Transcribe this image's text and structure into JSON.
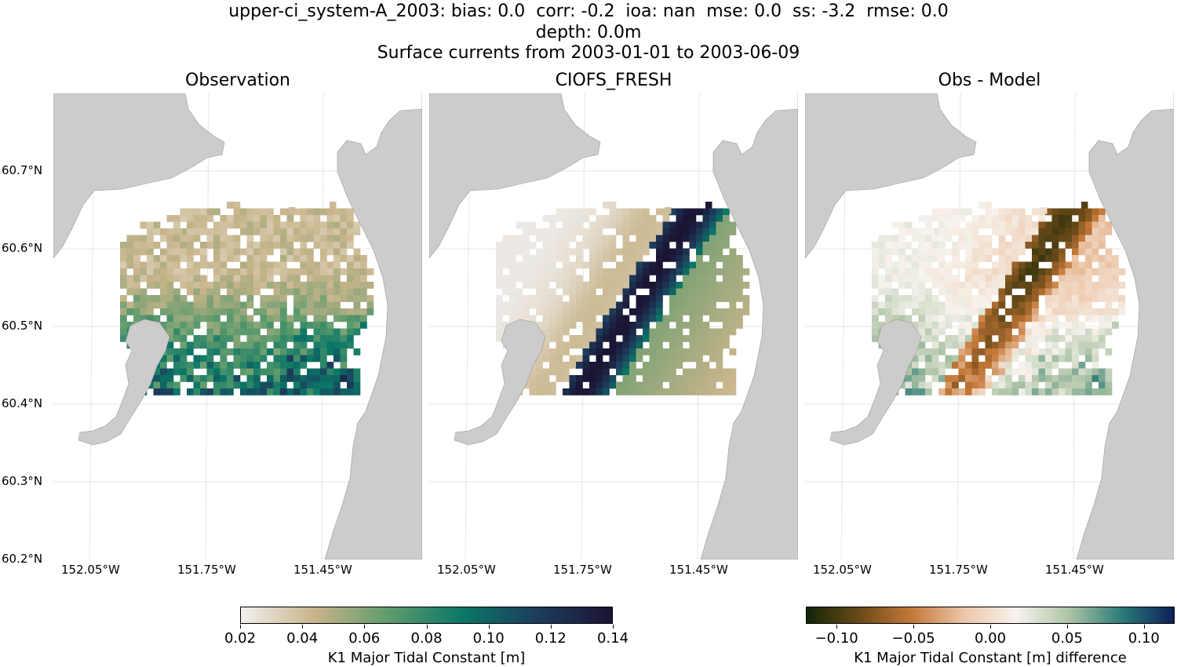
{
  "title": {
    "line1": "upper-ci_system-A_2003: bias: 0.0  corr: -0.2  ioa: nan  mse: 0.0  ss: -3.2  rmse: 0.0",
    "line2": "depth: 0.0m",
    "line3": "Surface currents from 2003-01-01 to 2003-06-09"
  },
  "panels": [
    {
      "id": "observation",
      "title": "Observation"
    },
    {
      "id": "model",
      "title": "CIOFS_FRESH"
    },
    {
      "id": "difference",
      "title": "Obs - Model"
    }
  ],
  "axes": {
    "lat_ticks": [
      "60.7°N",
      "60.6°N",
      "60.5°N",
      "60.4°N",
      "60.3°N",
      "60.2°N"
    ],
    "lon_ticks": [
      "152.05°W",
      "151.75°W",
      "151.45°W"
    ]
  },
  "colorbars": {
    "absolute": {
      "label": "K1 Major Tidal Constant [m]",
      "ticks": [
        "0.02",
        "0.04",
        "0.06",
        "0.08",
        "0.10",
        "0.12",
        "0.14"
      ],
      "range": [
        0.02,
        0.14
      ],
      "colors": [
        "#f2f0f0",
        "#c8b48a",
        "#5e9b6c",
        "#0a7666",
        "#1d3c5c",
        "#1b1433"
      ]
    },
    "difference": {
      "label": "K1 Major Tidal Constant [m] difference",
      "ticks": [
        "−0.10",
        "−0.05",
        "0.00",
        "0.05",
        "0.10"
      ],
      "range": [
        -0.12,
        0.12
      ],
      "colors": [
        "#112607",
        "#6a4a18",
        "#c47838",
        "#ecc6a8",
        "#f7f3ee",
        "#aec4a6",
        "#2b7c78",
        "#0c1f5a"
      ]
    }
  },
  "land_color": "#cccccc"
}
